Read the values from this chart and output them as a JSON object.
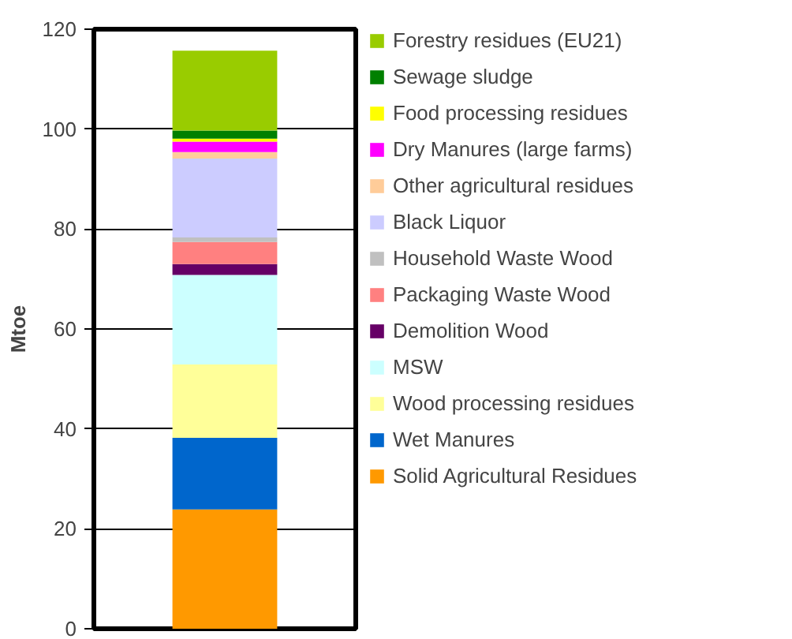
{
  "chart_data": {
    "type": "bar",
    "stacked": true,
    "ylabel": "Mtoe",
    "categories": [
      null
    ],
    "series": [
      {
        "name": "Solid Agricultural Residues",
        "color": "#ff9900",
        "values": [
          23.9
        ]
      },
      {
        "name": "Wet Manures",
        "color": "#0066cc",
        "values": [
          14.3
        ]
      },
      {
        "name": "Wood processing residues",
        "color": "#ffff99",
        "values": [
          14.7
        ]
      },
      {
        "name": "MSW",
        "color": "#ccffff",
        "values": [
          17.9
        ]
      },
      {
        "name": "Demolition Wood",
        "color": "#660066",
        "values": [
          2.2
        ]
      },
      {
        "name": "Packaging Waste Wood",
        "color": "#ff8080",
        "values": [
          4.4
        ]
      },
      {
        "name": "Household Waste Wood",
        "color": "#c0c0c0",
        "values": [
          0.9
        ]
      },
      {
        "name": "Black Liquor",
        "color": "#ccccff",
        "values": [
          15.8
        ]
      },
      {
        "name": "Other agricultural residues",
        "color": "#ffcc99",
        "values": [
          1.3
        ]
      },
      {
        "name": "Dry Manures (large farms)",
        "color": "#ff00ff",
        "values": [
          2.1
        ]
      },
      {
        "name": "Food processing residues",
        "color": "#ffff00",
        "values": [
          0.6
        ]
      },
      {
        "name": "Sewage sludge",
        "color": "#008000",
        "values": [
          1.6
        ]
      },
      {
        "name": "Forestry residues (EU21)",
        "color": "#99cc00",
        "values": [
          16.0
        ]
      }
    ],
    "ylim": [
      0,
      120
    ],
    "yticks": [
      0,
      20,
      40,
      60,
      80,
      100,
      120
    ],
    "grid": "y",
    "legend": "right",
    "tick_labels": "y"
  }
}
